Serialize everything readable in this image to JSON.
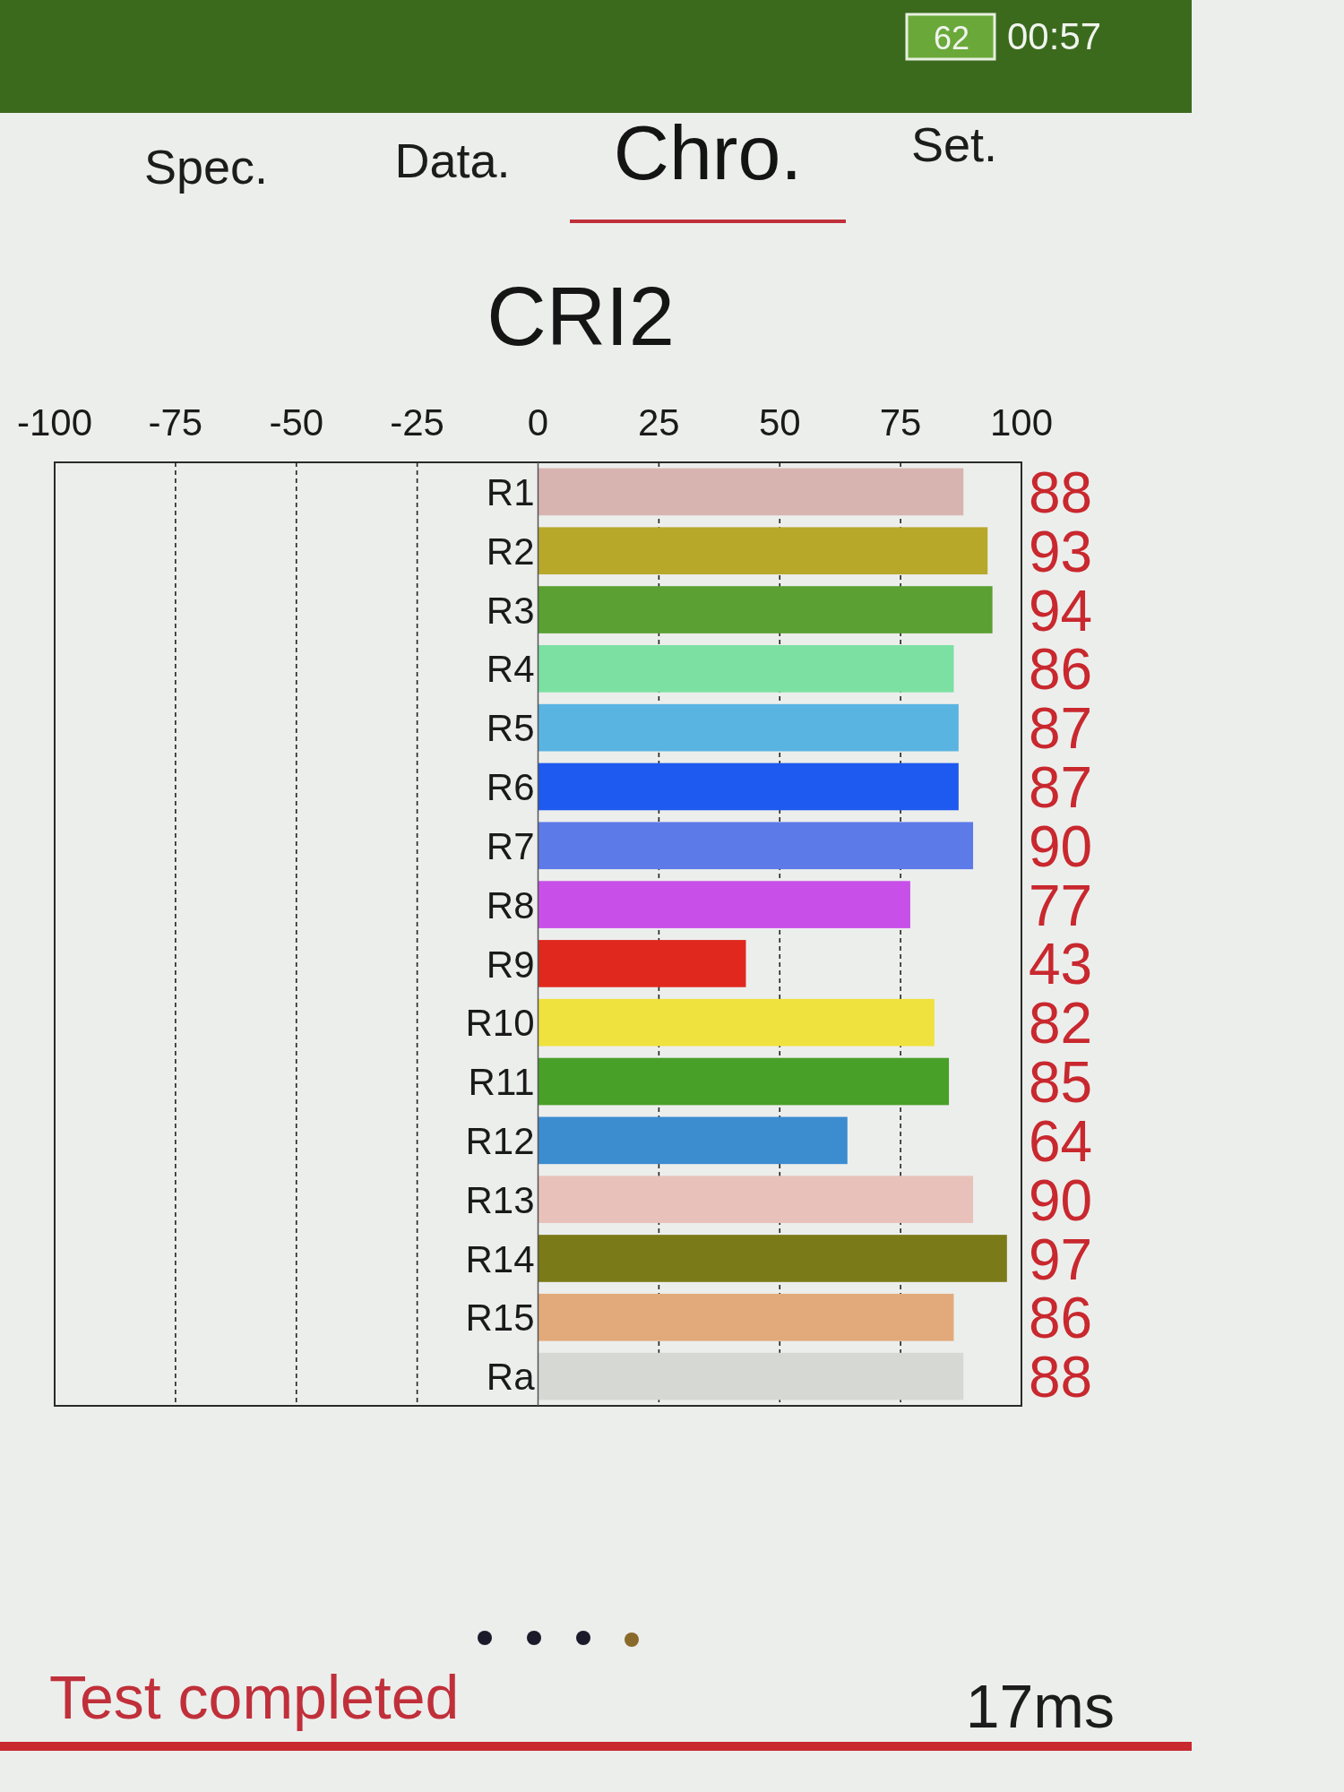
{
  "chart_data": {
    "type": "bar",
    "orientation": "horizontal",
    "title": "CRI2",
    "categories": [
      "R1",
      "R2",
      "R3",
      "R4",
      "R5",
      "R6",
      "R7",
      "R8",
      "R9",
      "R10",
      "R11",
      "R12",
      "R13",
      "R14",
      "R15",
      "Ra"
    ],
    "values": [
      88,
      93,
      94,
      86,
      87,
      87,
      90,
      77,
      43,
      82,
      85,
      64,
      90,
      97,
      86,
      88
    ],
    "colors": [
      "#d8b4b0",
      "#b8a82a",
      "#5aa032",
      "#7ce0a2",
      "#5ab4e2",
      "#1e5af0",
      "#5c7ae8",
      "#c850e8",
      "#e0281e",
      "#f0e23e",
      "#48a028",
      "#3c8cd0",
      "#e8c2ba",
      "#7a7a18",
      "#e2aa7a",
      "#d6d8d3"
    ],
    "xlim": [
      -100,
      100
    ],
    "xticks": [
      -100,
      -75,
      -50,
      -25,
      0,
      25,
      50,
      75,
      100
    ],
    "grid": "x",
    "data_labels": true,
    "annotations": [
      "Spec.",
      "Data.",
      "Chro.",
      "Set.",
      "62",
      "00:57",
      "Test completed",
      "17ms"
    ]
  }
}
